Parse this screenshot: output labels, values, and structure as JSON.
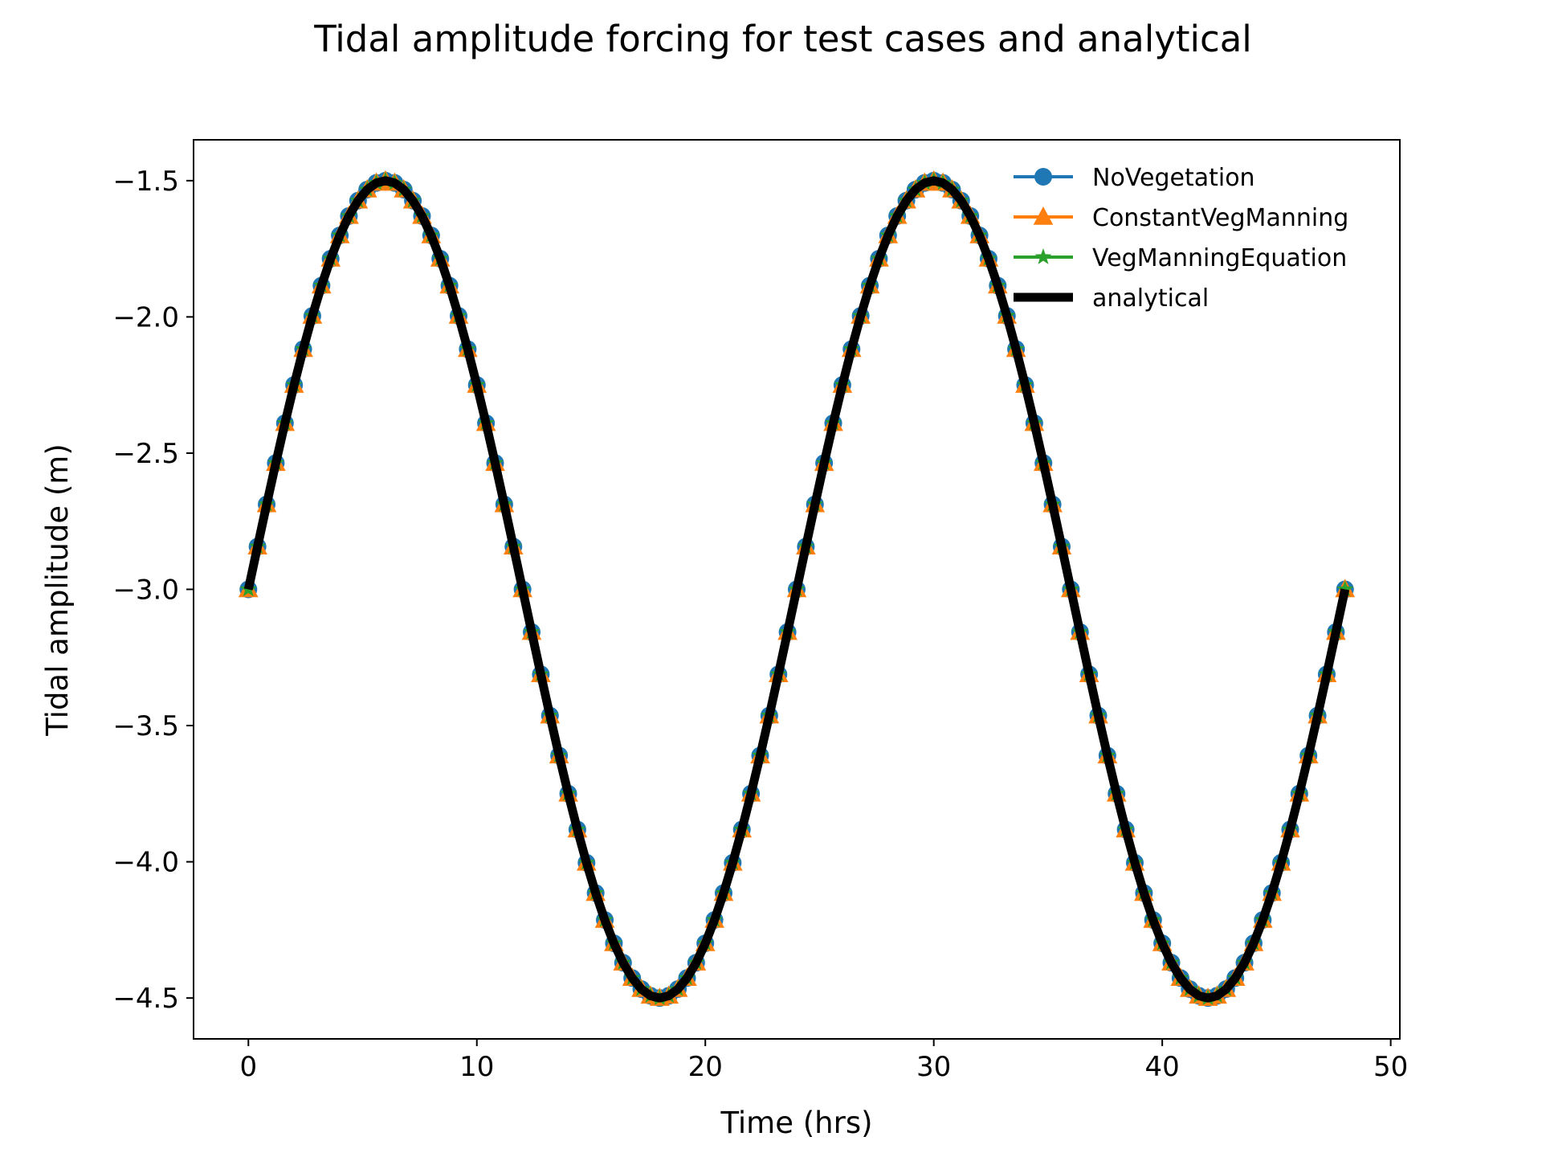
{
  "chart_data": {
    "type": "line",
    "title": "Tidal amplitude forcing for test cases and analytical",
    "xlabel": "Time (hrs)",
    "ylabel": "Tidal amplitude (m)",
    "xlim": [
      -2.4,
      50.4
    ],
    "ylim": [
      -4.65,
      -1.35
    ],
    "xticks": [
      0,
      10,
      20,
      30,
      40,
      50
    ],
    "yticks": [
      -1.5,
      -2.0,
      -2.5,
      -3.0,
      -3.5,
      -4.0,
      -4.5
    ],
    "xtick_labels": [
      "0",
      "10",
      "20",
      "30",
      "40",
      "50"
    ],
    "ytick_labels": [
      "−1.5",
      "−2.0",
      "−2.5",
      "−3.0",
      "−3.5",
      "−4.0",
      "−4.5"
    ],
    "grid": false,
    "legend_position": "upper-right",
    "sampling": {
      "x_start": 0,
      "x_end": 48,
      "interval_hrs": 0.4
    },
    "series": [
      {
        "name": "NoVegetation",
        "function": "-3 + 1.5*sin(2*pi*t/24)",
        "color": "#1f77b4",
        "marker": "circle"
      },
      {
        "name": "ConstantVegManning",
        "function": "-3 + 1.5*sin(2*pi*t/24)",
        "color": "#ff7f0e",
        "marker": "triangle-up"
      },
      {
        "name": "VegManningEquation",
        "function": "-3 + 1.5*sin(2*pi*t/24)",
        "color": "#2ca02c",
        "marker": "star"
      },
      {
        "name": "analytical",
        "function": "-3 + 1.5*sin(2*pi*t/24)",
        "color": "#000000",
        "marker": "none"
      }
    ]
  }
}
